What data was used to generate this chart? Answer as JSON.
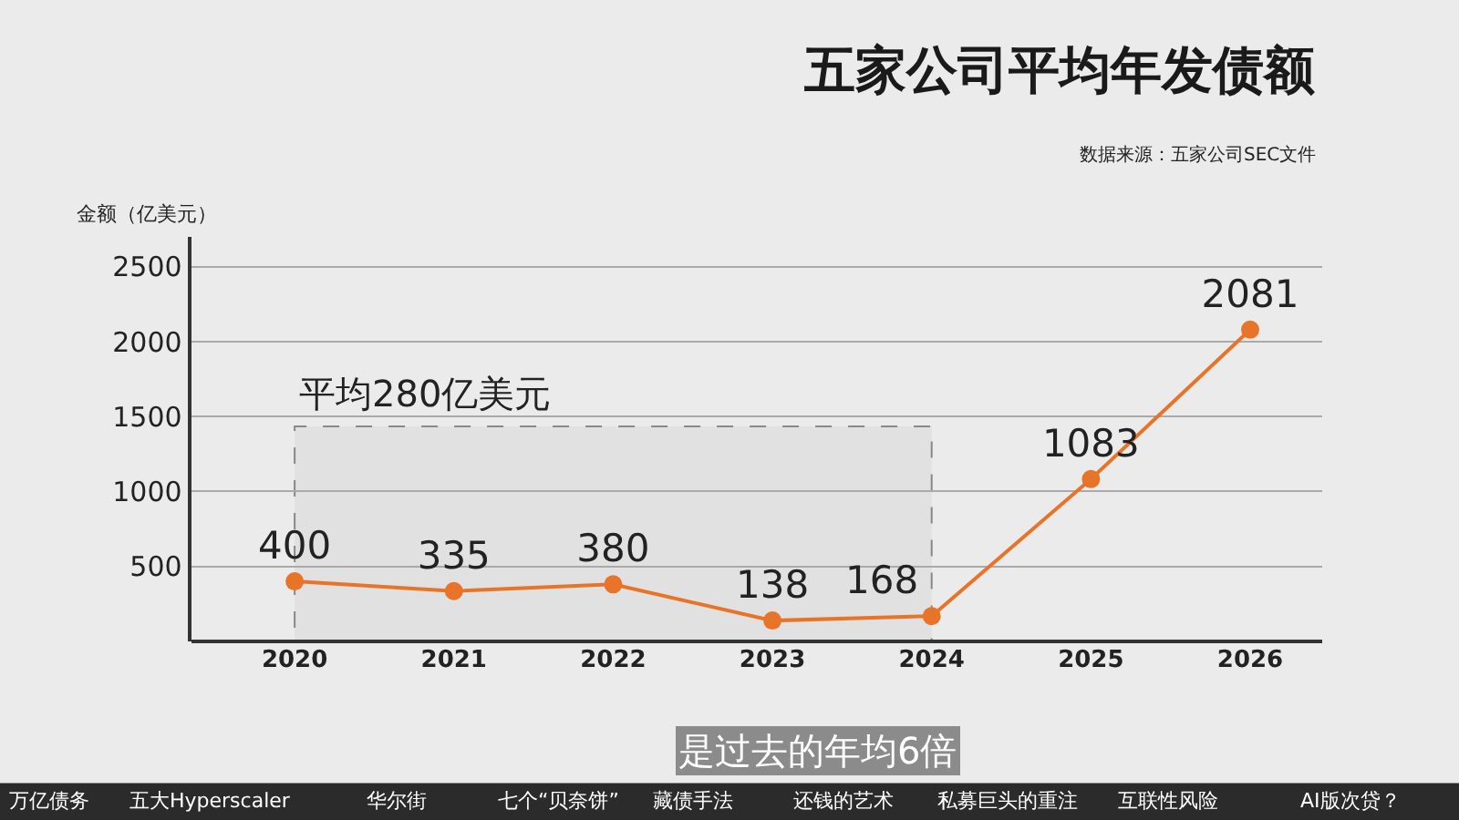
{
  "chart_data": {
    "type": "line",
    "title": "五家公司平均年发债额",
    "ylabel": "金额（亿美元）",
    "categories": [
      "2020",
      "2021",
      "2022",
      "2023",
      "2024",
      "2025",
      "2026"
    ],
    "series": [
      {
        "color": "#e8742a",
        "values": [
          400,
          335,
          380,
          138,
          168,
          1083,
          2081
        ]
      }
    ],
    "data_labels": true,
    "marker": "circle",
    "line_style": "solid",
    "ylim": [
      0,
      2700
    ],
    "yticks": [
      500,
      1000,
      1500,
      2000,
      2500
    ],
    "grid": "y",
    "legend": false,
    "bands": [
      {
        "axis": "x",
        "from": "2020",
        "to": "2024",
        "label": "平均280亿美元",
        "color": "#888888"
      }
    ],
    "annotations": [
      "数据来源：五家公司SEC文件",
      "是过去的年均6倍",
      "万亿债务",
      "五大Hyperscaler",
      "华尔街",
      "七个“贝奈饼”",
      "藏债手法",
      "还钱的艺术",
      "私募巨头的重注",
      "互联性风险",
      "AI版次贷？"
    ]
  }
}
